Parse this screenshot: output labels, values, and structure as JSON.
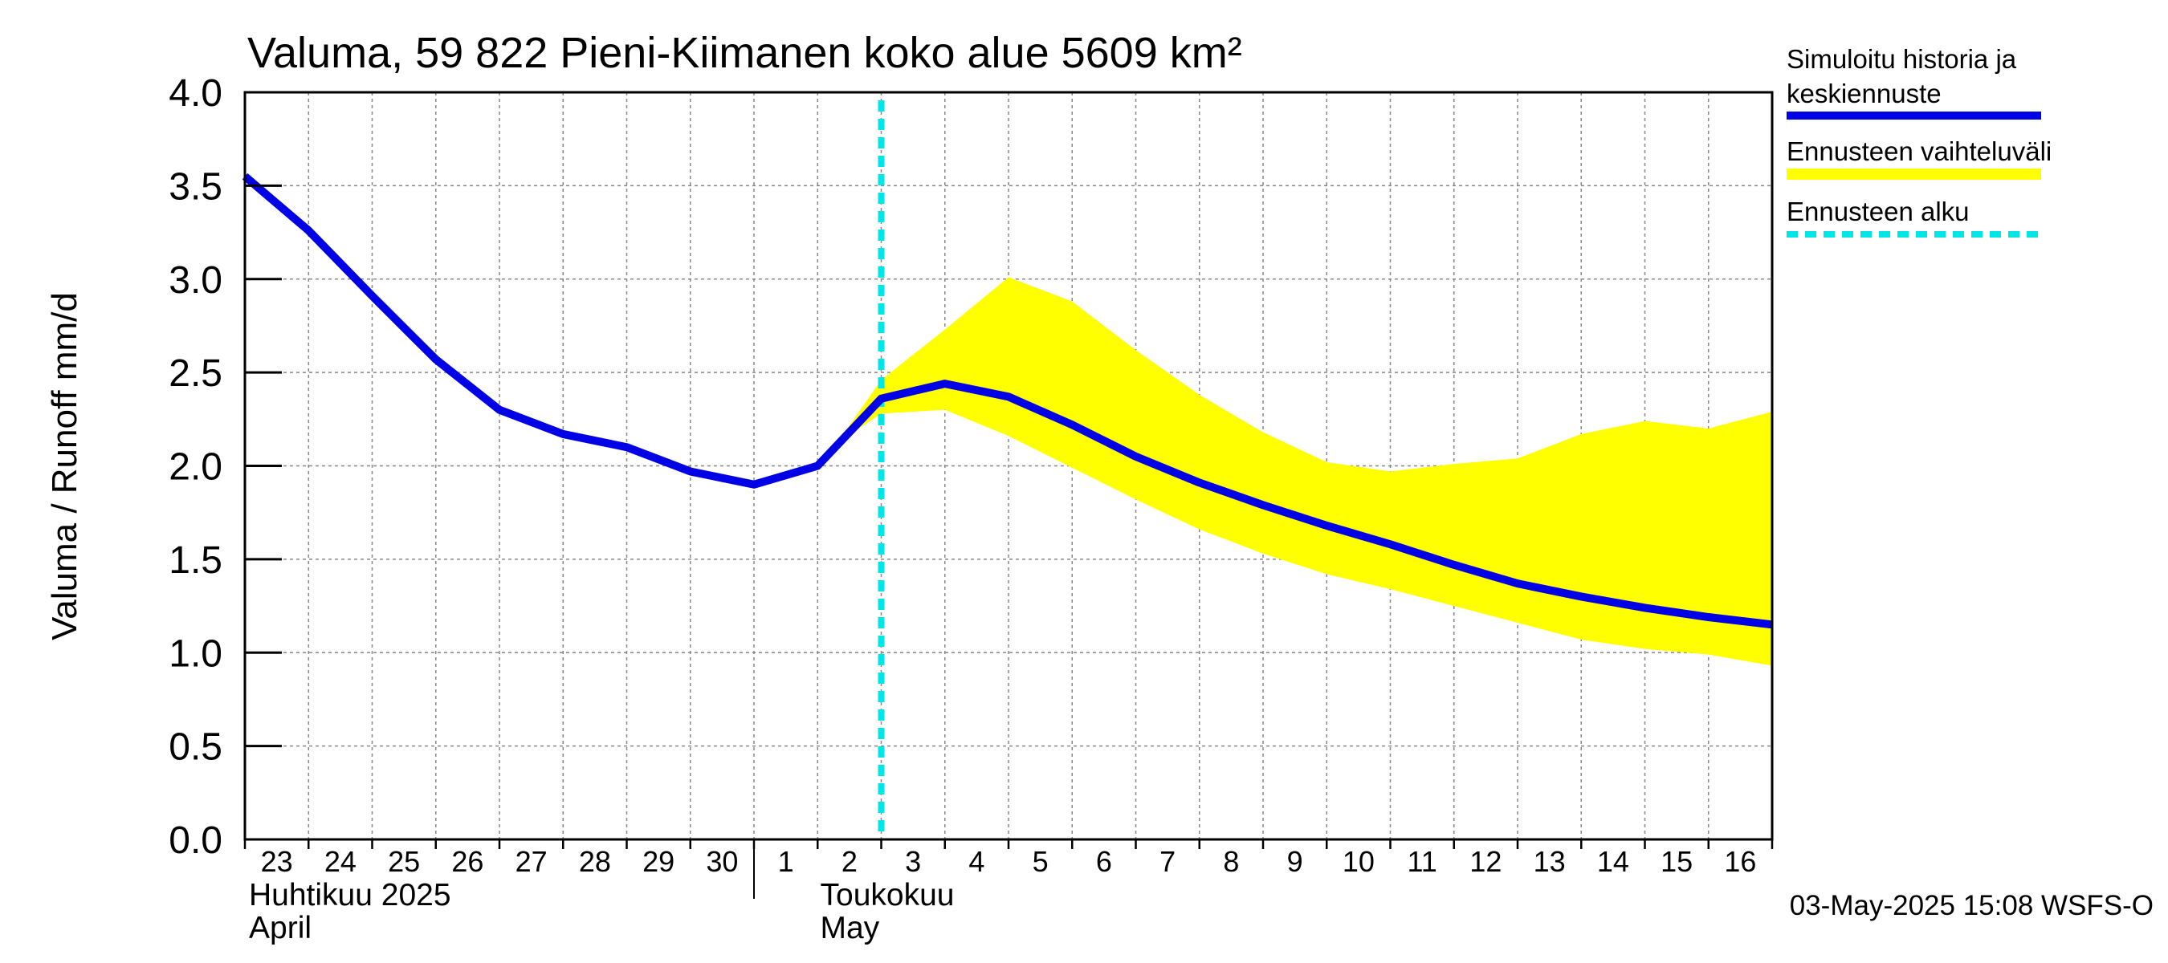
{
  "chart_data": {
    "type": "area",
    "title": "Valuma, 59 822 Pieni-Kiimanen koko alue 5609 km²",
    "ylabel": "Valuma / Runoff    mm/d",
    "ylim": [
      0,
      4.0
    ],
    "yticks": [
      "0.0",
      "0.5",
      "1.0",
      "1.5",
      "2.0",
      "2.5",
      "3.0",
      "3.5",
      "4.0"
    ],
    "grid": true,
    "xticks": [
      "23",
      "24",
      "25",
      "26",
      "27",
      "28",
      "29",
      "30",
      "1",
      "2",
      "3",
      "4",
      "5",
      "6",
      "7",
      "8",
      "9",
      "10",
      "11",
      "12",
      "13",
      "14",
      "15",
      "16"
    ],
    "month_labels": [
      {
        "fi": "Huhtikuu  2025",
        "en": "April"
      },
      {
        "fi": "Toukokuu",
        "en": "May"
      }
    ],
    "x_days": [
      0,
      1,
      2,
      3,
      4,
      5,
      6,
      7,
      8,
      9,
      10,
      11,
      12,
      13,
      14,
      15,
      16,
      17,
      18,
      19,
      20,
      21,
      22,
      23,
      24
    ],
    "series": [
      {
        "name": "Simuloitu historia ja keskiennuste",
        "color": "#0000e6",
        "x": [
          0,
          1,
          2,
          3,
          4,
          5,
          6,
          7,
          8,
          9,
          10,
          11,
          12,
          13,
          14,
          15,
          16,
          17,
          18,
          19,
          20,
          21,
          22,
          23,
          24
        ],
        "values": [
          3.55,
          3.26,
          2.91,
          2.57,
          2.3,
          2.17,
          2.1,
          1.97,
          1.9,
          2.0,
          2.36,
          2.44,
          2.37,
          2.22,
          2.05,
          1.91,
          1.79,
          1.68,
          1.58,
          1.47,
          1.37,
          1.3,
          1.24,
          1.19,
          1.15
        ]
      },
      {
        "name": "Ennusteen vaihteluväli",
        "color": "#ffff00",
        "x": [
          9.3,
          10,
          11,
          12,
          13,
          14,
          15,
          16,
          17,
          18,
          19,
          20,
          21,
          22,
          23,
          24
        ],
        "upper": [
          2.12,
          2.46,
          2.73,
          3.01,
          2.88,
          2.62,
          2.38,
          2.18,
          2.02,
          1.97,
          2.01,
          2.04,
          2.17,
          2.24,
          2.2,
          2.29
        ],
        "lower": [
          2.12,
          2.28,
          2.3,
          2.16,
          1.99,
          1.82,
          1.66,
          1.53,
          1.42,
          1.34,
          1.25,
          1.16,
          1.07,
          1.02,
          0.99,
          0.93
        ]
      },
      {
        "name": "Ennusteen alku",
        "color": "#00e5e5",
        "x": 10
      }
    ],
    "footer": "03-May-2025 15:08 WSFS-O"
  }
}
